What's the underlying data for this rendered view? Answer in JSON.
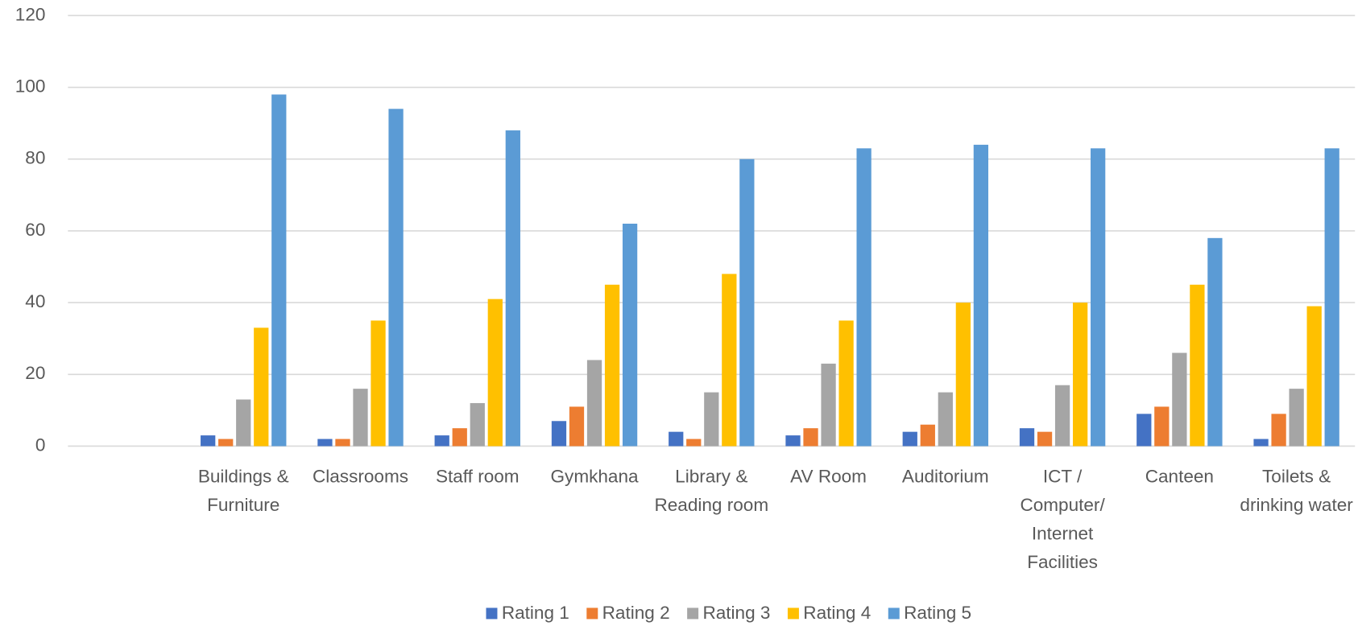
{
  "chart_data": {
    "type": "bar",
    "categories": [
      null,
      "Buildings & Furniture",
      "Classrooms",
      "Staff room",
      "Gymkhana",
      "Library & Reading room",
      "AV Room",
      "Auditorium",
      "ICT / Computer/ Internet Facilities",
      "Canteen",
      "Toilets & drinking water"
    ],
    "series": [
      {
        "name": "Rating 1",
        "color": "#4472c4",
        "values": [
          null,
          3,
          2,
          3,
          7,
          4,
          3,
          4,
          5,
          9,
          2
        ]
      },
      {
        "name": "Rating 2",
        "color": "#ed7d31",
        "values": [
          null,
          2,
          2,
          5,
          11,
          2,
          5,
          6,
          4,
          11,
          9
        ]
      },
      {
        "name": "Rating 3",
        "color": "#a5a5a5",
        "values": [
          null,
          13,
          16,
          12,
          24,
          15,
          23,
          15,
          17,
          26,
          16
        ]
      },
      {
        "name": "Rating 4",
        "color": "#ffc000",
        "values": [
          null,
          33,
          35,
          41,
          45,
          48,
          35,
          40,
          40,
          45,
          39
        ]
      },
      {
        "name": "Rating 5",
        "color": "#5b9bd5",
        "values": [
          null,
          98,
          94,
          88,
          62,
          80,
          83,
          84,
          83,
          58,
          83
        ]
      }
    ],
    "ylim": [
      0,
      120
    ],
    "yticks": [
      0,
      20,
      40,
      60,
      80,
      100,
      120
    ],
    "grid": true,
    "legend": "bottom"
  }
}
